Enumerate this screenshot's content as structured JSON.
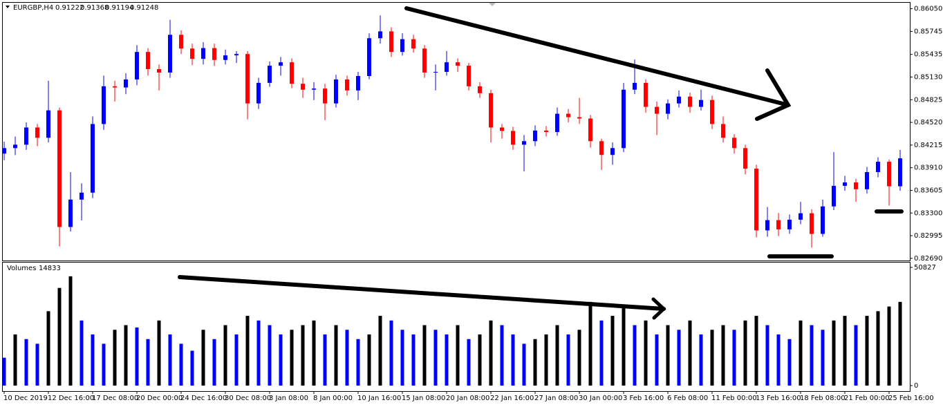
{
  "chart_data": [
    {
      "type": "candlestick",
      "title": "EURGBP,H4",
      "header_values": [
        0.91222,
        0.91368,
        0.91194,
        0.91248
      ],
      "categories": [
        "10 Dec 2019",
        null,
        null,
        null,
        "12 Dec 16:00",
        null,
        null,
        null,
        "17 Dec 08:00",
        null,
        null,
        null,
        "20 Dec 00:00",
        null,
        null,
        null,
        "24 Dec 16:00",
        null,
        null,
        null,
        "30 Dec 08:00",
        null,
        null,
        null,
        "3 Jan 08:00",
        null,
        null,
        null,
        "8 Jan 00:00",
        null,
        null,
        null,
        "10 Jan 16:00",
        null,
        null,
        null,
        "15 Jan 08:00",
        null,
        null,
        null,
        "20 Jan 08:00",
        null,
        null,
        null,
        "22 Jan 16:00",
        null,
        null,
        null,
        "27 Jan 08:00",
        null,
        null,
        null,
        "30 Jan 00:00",
        null,
        null,
        null,
        "3 Feb 16:00",
        null,
        null,
        null,
        "6 Feb 08:00",
        null,
        null,
        null,
        "11 Feb 00:00",
        null,
        null,
        null,
        "13 Feb 16:00",
        null,
        null,
        null,
        "18 Feb 08:00",
        null,
        null,
        null,
        "21 Feb 00:00",
        null,
        null,
        null,
        "25 Feb 16:00",
        null
      ],
      "open": [
        0.841,
        0.84174,
        0.8422,
        0.84451,
        0.84313,
        0.84682,
        0.83112,
        0.83481,
        0.83574,
        0.84498,
        0.85006,
        0.8499,
        0.85098,
        0.85468,
        0.85237,
        0.85191,
        0.85699,
        0.85514,
        0.85375,
        0.8552,
        0.8536,
        0.85422,
        0.8544,
        0.84775,
        0.85052,
        0.85283,
        0.85329,
        0.8504,
        0.8496,
        0.84975,
        0.84775,
        0.85098,
        0.8495,
        0.85144,
        0.85653,
        0.85745,
        0.85468,
        0.8564,
        0.85514,
        0.85191,
        0.852,
        0.85329,
        0.85283,
        0.85006,
        0.84913,
        0.84451,
        0.84405,
        0.8422,
        0.84267,
        0.8441,
        0.8439,
        0.84636,
        0.8459,
        0.84572,
        0.84267,
        0.84082,
        0.84174,
        0.8496,
        0.85052,
        0.84729,
        0.84636,
        0.84775,
        0.84867,
        0.84729,
        0.84821,
        0.84498,
        0.84313,
        0.84174,
        0.83897,
        0.83066,
        0.83204,
        0.8308,
        0.8321,
        0.83297,
        0.83019,
        0.83389,
        0.83666,
        0.83712,
        0.8362,
        0.83851,
        0.8399,
        0.8366
      ],
      "high": [
        0.8426,
        0.8433,
        0.8452,
        0.845,
        0.8508,
        0.8472,
        0.8385,
        0.837,
        0.846,
        0.8515,
        0.8508,
        0.8518,
        0.8556,
        0.8552,
        0.853,
        0.859,
        0.8576,
        0.8558,
        0.856,
        0.8558,
        0.855,
        0.8548,
        0.8548,
        0.8512,
        0.8534,
        0.854,
        0.8538,
        0.8512,
        0.8506,
        0.8504,
        0.8516,
        0.8515,
        0.852,
        0.8572,
        0.8596,
        0.858,
        0.8572,
        0.857,
        0.8556,
        0.853,
        0.8548,
        0.8538,
        0.8532,
        0.8506,
        0.8496,
        0.845,
        0.8446,
        0.8435,
        0.8448,
        0.8447,
        0.8472,
        0.847,
        0.8485,
        0.8462,
        0.843,
        0.8425,
        0.8505,
        0.85366,
        0.851,
        0.848,
        0.8483,
        0.8495,
        0.8492,
        0.8496,
        0.8488,
        0.846,
        0.8436,
        0.8422,
        0.8395,
        0.8338,
        0.833,
        0.8328,
        0.8345,
        0.8335,
        0.8348,
        0.8412,
        0.838,
        0.8376,
        0.8392,
        0.8405,
        0.8402,
        0.8415
      ],
      "low": [
        0.8401,
        0.8408,
        0.8415,
        0.842,
        0.8425,
        0.8285,
        0.8305,
        0.832,
        0.835,
        0.8442,
        0.848,
        0.849,
        0.8502,
        0.8515,
        0.8495,
        0.8512,
        0.8544,
        0.8529,
        0.853,
        0.8528,
        0.853,
        0.8532,
        0.8456,
        0.847,
        0.85,
        0.8515,
        0.8498,
        0.8485,
        0.8482,
        0.8455,
        0.8472,
        0.8488,
        0.8482,
        0.851,
        0.8558,
        0.854,
        0.8542,
        0.8546,
        0.8512,
        0.8495,
        0.8515,
        0.852,
        0.8495,
        0.8485,
        0.8425,
        0.843,
        0.8415,
        0.8386,
        0.842,
        0.8433,
        0.8434,
        0.8452,
        0.845,
        0.8418,
        0.8388,
        0.8395,
        0.8412,
        0.849,
        0.8465,
        0.8435,
        0.8456,
        0.8472,
        0.8465,
        0.8468,
        0.8443,
        0.8425,
        0.841,
        0.8382,
        0.82973,
        0.8298,
        0.8299,
        0.8302,
        0.8315,
        0.82835,
        0.8298,
        0.8334,
        0.836,
        0.8345,
        0.8356,
        0.8378,
        0.834,
        0.836
      ],
      "close": [
        0.84174,
        0.8422,
        0.84451,
        0.84313,
        0.84682,
        0.83112,
        0.83481,
        0.83574,
        0.84498,
        0.85006,
        0.8499,
        0.85098,
        0.85468,
        0.85237,
        0.85191,
        0.85699,
        0.85514,
        0.85375,
        0.8552,
        0.8536,
        0.85422,
        0.8544,
        0.84775,
        0.85052,
        0.85283,
        0.85329,
        0.8504,
        0.8496,
        0.84975,
        0.84775,
        0.85098,
        0.8495,
        0.85144,
        0.85653,
        0.85745,
        0.85468,
        0.8564,
        0.85514,
        0.85191,
        0.852,
        0.85329,
        0.85283,
        0.85006,
        0.84913,
        0.84451,
        0.84405,
        0.8422,
        0.84267,
        0.8441,
        0.8439,
        0.84636,
        0.8459,
        0.84572,
        0.84267,
        0.84082,
        0.84174,
        0.8496,
        0.85052,
        0.84729,
        0.84636,
        0.84775,
        0.84867,
        0.84729,
        0.84821,
        0.84498,
        0.84313,
        0.84174,
        0.83897,
        0.83066,
        0.83204,
        0.8308,
        0.8321,
        0.83297,
        0.83019,
        0.83389,
        0.83666,
        0.83712,
        0.8362,
        0.83851,
        0.8399,
        0.8366,
        0.84036
      ],
      "up_color": "#0000ff",
      "down_color": "#ff0000",
      "ylim": [
        0.8267,
        0.8613
      ],
      "yticks": [
        {
          "value": 0.8605,
          "label": "0.86050"
        },
        {
          "value": 0.85745,
          "label": "0.85745"
        },
        {
          "value": 0.85435,
          "label": "0.85435"
        },
        {
          "value": 0.8513,
          "label": "0.85130"
        },
        {
          "value": 0.84825,
          "label": "0.84825"
        },
        {
          "value": 0.8452,
          "label": "0.84520"
        },
        {
          "value": 0.84215,
          "label": "0.84215"
        },
        {
          "value": 0.8391,
          "label": "0.83910"
        },
        {
          "value": 0.83605,
          "label": "0.83605"
        },
        {
          "value": 0.833,
          "label": "0.83300"
        },
        {
          "value": 0.82995,
          "label": "0.82995"
        },
        {
          "value": 0.8269,
          "label": "0.82690"
        }
      ]
    },
    {
      "type": "bar",
      "title": "Volumes",
      "last_value": 14833,
      "values": [
        12000,
        22000,
        20000,
        18000,
        32000,
        42000,
        47000,
        28000,
        22000,
        18000,
        24000,
        26000,
        25000,
        20000,
        28000,
        22000,
        18000,
        15000,
        24000,
        20000,
        26000,
        22000,
        30000,
        28000,
        26000,
        22000,
        24000,
        26000,
        28000,
        22000,
        26000,
        24000,
        20000,
        22000,
        30000,
        28000,
        24000,
        22000,
        26000,
        24000,
        22000,
        26000,
        20000,
        22000,
        28000,
        26000,
        22000,
        18000,
        20000,
        22000,
        26000,
        22000,
        24000,
        36000,
        28000,
        30000,
        34000,
        26000,
        28000,
        22000,
        26000,
        24000,
        28000,
        22000,
        24000,
        26000,
        24000,
        28000,
        30000,
        26000,
        22000,
        20000,
        28000,
        26000,
        24000,
        28000,
        30000,
        26000,
        30000,
        32000,
        34000,
        36000
      ],
      "up_color": "#000000",
      "down_color": "#0000ff",
      "ylim": [
        -2364,
        52896
      ],
      "yticks": [
        0,
        50827
      ]
    }
  ]
}
